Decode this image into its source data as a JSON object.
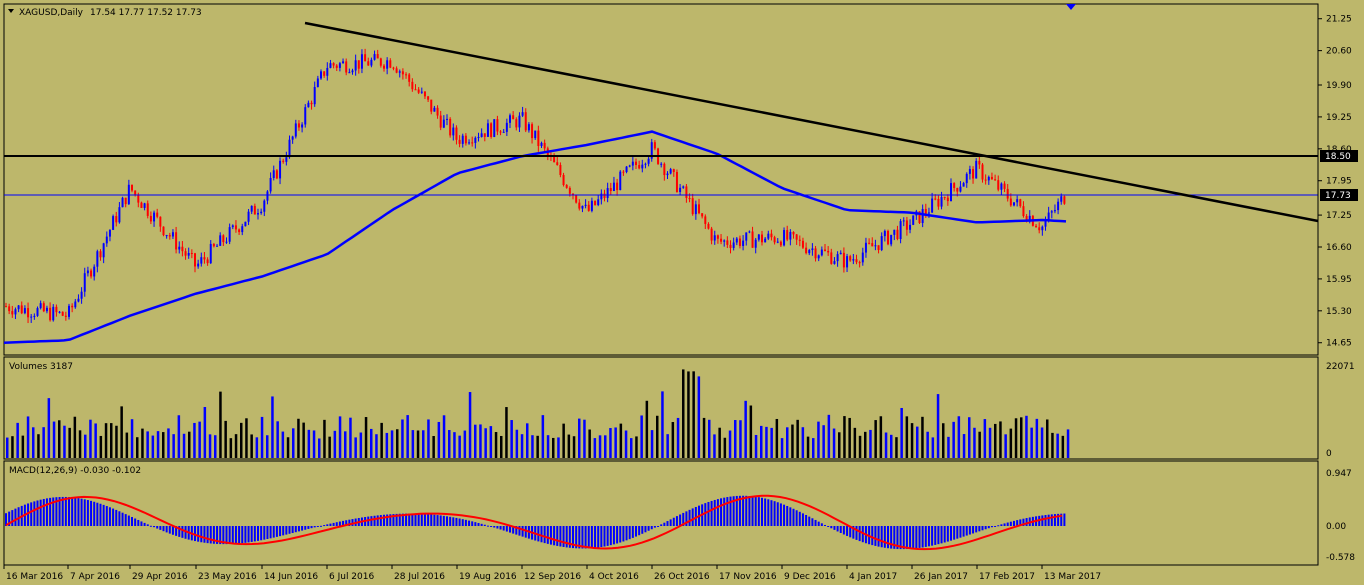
{
  "main": {
    "symbol_label": "XAGUSD,Daily",
    "ohlc_label": "17.54 17.77 17.52 17.73",
    "price_ticks": [
      "21.25",
      "20.60",
      "19.90",
      "19.25",
      "18.60",
      "17.95",
      "17.25",
      "16.60",
      "15.95",
      "15.30",
      "14.65"
    ],
    "level_18_50": "18.50",
    "current_price": "17.73"
  },
  "volumes": {
    "label": "Volumes 3187",
    "ticks": [
      "22071",
      "0"
    ]
  },
  "macd": {
    "label": "MACD(12,26,9) -0.030 -0.102",
    "ticks": [
      "0.947",
      "0.00",
      "-0.578"
    ]
  },
  "date_labels": [
    "16 Mar 2016",
    "7 Apr 2016",
    "29 Apr 2016",
    "23 May 2016",
    "14 Jun 2016",
    "6 Jul 2016",
    "28 Jul 2016",
    "19 Aug 2016",
    "12 Sep 2016",
    "4 Oct 2016",
    "26 Oct 2016",
    "17 Nov 2016",
    "9 Dec 2016",
    "4 Jan 2017",
    "26 Jan 2017",
    "17 Feb 2017",
    "13 Mar 2017"
  ],
  "colors": {
    "background": "#bdb76b",
    "bull_candle": "#0000ff",
    "bear_candle": "#ff0000",
    "moving_average": "#0000ff",
    "trendline": "#000000",
    "volume_bars": "#0000ff",
    "macd_signal": "#ff0000"
  },
  "chart_data": {
    "type": "candlestick",
    "symbol": "XAGUSD",
    "timeframe": "Daily",
    "last_ohlc": {
      "open": 17.54,
      "high": 17.77,
      "low": 17.52,
      "close": 17.73
    },
    "price_axis_range": [
      14.65,
      21.25
    ],
    "ma_keypoints": [
      {
        "date": "16 Mar 2016",
        "value": 14.65
      },
      {
        "date": "4 Apr 2016",
        "value": 14.7
      },
      {
        "date": "29 Apr 2016",
        "value": 15.2
      },
      {
        "date": "23 May 2016",
        "value": 15.65
      },
      {
        "date": "14 Jun 2016",
        "value": 16.0
      },
      {
        "date": "6 Jul 2016",
        "value": 16.45
      },
      {
        "date": "28 Jul 2016",
        "value": 17.35
      },
      {
        "date": "19 Aug 2016",
        "value": 18.1
      },
      {
        "date": "12 Sep 2016",
        "value": 18.45
      },
      {
        "date": "4 Oct 2016",
        "value": 18.68
      },
      {
        "date": "26 Oct 2016",
        "value": 18.95
      },
      {
        "date": "17 Nov 2016",
        "value": 18.5
      },
      {
        "date": "9 Dec 2016",
        "value": 17.8
      },
      {
        "date": "4 Jan 2017",
        "value": 17.35
      },
      {
        "date": "26 Jan 2017",
        "value": 17.3
      },
      {
        "date": "17 Feb 2017",
        "value": 17.1
      },
      {
        "date": "13 Mar 2017",
        "value": 17.15
      },
      {
        "date": "22 Mar 2017",
        "value": 17.12
      }
    ],
    "horizontal_level": 18.5,
    "trendline": [
      {
        "date": "1 Jul 2016",
        "value": 21.1
      },
      {
        "date": "17 Feb 2017",
        "value": 18.45
      }
    ],
    "close_keypoints": [
      {
        "date": "16 Mar 2016",
        "value": 15.4
      },
      {
        "date": "7 Apr 2016",
        "value": 15.2
      },
      {
        "date": "29 Apr 2016",
        "value": 17.8
      },
      {
        "date": "23 May 2016",
        "value": 16.2
      },
      {
        "date": "14 Jun 2016",
        "value": 17.5
      },
      {
        "date": "6 Jul 2016",
        "value": 20.3
      },
      {
        "date": "28 Jul 2016",
        "value": 20.4
      },
      {
        "date": "19 Aug 2016",
        "value": 18.8
      },
      {
        "date": "12 Sep 2016",
        "value": 19.2
      },
      {
        "date": "4 Oct 2016",
        "value": 17.3
      },
      {
        "date": "26 Oct 2016",
        "value": 18.6
      },
      {
        "date": "17 Nov 2016",
        "value": 16.7
      },
      {
        "date": "9 Dec 2016",
        "value": 16.8
      },
      {
        "date": "4 Jan 2017",
        "value": 16.3
      },
      {
        "date": "26 Jan 2017",
        "value": 17.1
      },
      {
        "date": "17 Feb 2017",
        "value": 18.2
      },
      {
        "date": "13 Mar 2017",
        "value": 17.0
      },
      {
        "date": "22 Mar 2017",
        "value": 17.73
      }
    ],
    "volume_range": [
      0,
      22071
    ],
    "macd_range": [
      -0.578,
      0.947
    ]
  }
}
